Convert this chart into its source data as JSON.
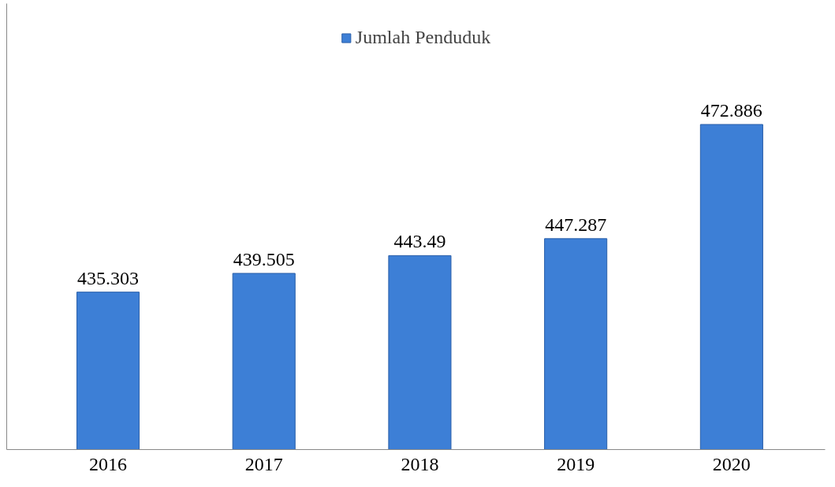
{
  "chart_data": {
    "type": "bar",
    "categories": [
      "2016",
      "2017",
      "2018",
      "2019",
      "2020"
    ],
    "series": [
      {
        "name": "Jumlah Penduduk",
        "color": "#3d7fd6",
        "values": [
          435.303,
          439.505,
          443.49,
          447.287,
          472.886
        ]
      }
    ],
    "ylim": [
      400,
      500
    ],
    "data_labels": true,
    "legend": "top",
    "grid": false,
    "tick_labels": "x"
  }
}
